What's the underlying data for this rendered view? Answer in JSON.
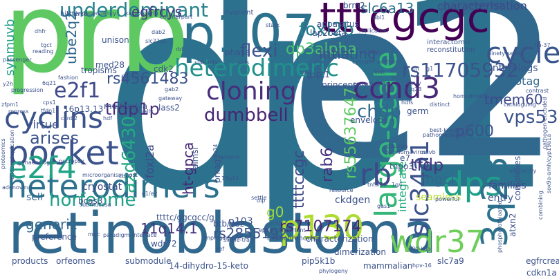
{
  "cloud": {
    "words": [
      {
        "text": "dp1",
        "color": "#2c728e"
      },
      {
        "text": "e2f",
        "color": "#31688e"
      },
      {
        "text": "prb",
        "color": "#5ec962"
      },
      {
        "text": "retinoblastoma",
        "color": "#31688e"
      },
      {
        "text": "p107",
        "color": "#2c728e"
      },
      {
        "text": "tttcgcgc",
        "color": "#440154"
      },
      {
        "text": "heterodimeric",
        "color": "#21918c"
      },
      {
        "text": "heterodimers",
        "color": "#2c728e"
      },
      {
        "text": "pocket",
        "color": "#3b528b"
      },
      {
        "text": "cyclins",
        "color": "#3b528b"
      },
      {
        "text": "cloning",
        "color": "#472d7b"
      },
      {
        "text": "large-scale",
        "color": "#35b779"
      },
      {
        "text": "ccnd3",
        "color": "#482878"
      },
      {
        "text": "p130",
        "color": "#addc30"
      },
      {
        "text": "dps",
        "color": "#1f9e89"
      },
      {
        "text": "3q23",
        "color": "#2c728e"
      },
      {
        "text": "e2f4",
        "color": "#20a486"
      },
      {
        "text": "e2f1",
        "color": "#3e4989"
      },
      {
        "text": "wdr37",
        "color": "#6ece58"
      },
      {
        "text": "slc34a1",
        "color": "#3b528b"
      },
      {
        "text": "underdominant",
        "color": "#26828e"
      },
      {
        "text": "rb",
        "color": "#3e4989"
      },
      {
        "text": "rs7107174",
        "color": "#482878"
      },
      {
        "text": "cycle",
        "color": "#39568c"
      },
      {
        "text": "dp3alpha",
        "color": "#4ac16d"
      },
      {
        "text": "flexi",
        "color": "#3b528b"
      },
      {
        "text": "foxl2b",
        "color": "#26828e"
      },
      {
        "text": "rs11705932",
        "color": "#3b528b"
      },
      {
        "text": "ube2q2",
        "color": "#30678d"
      },
      {
        "text": "tfdp1p",
        "color": "#472c7a"
      },
      {
        "text": "rs4561483",
        "color": "#3b528b"
      },
      {
        "text": "dumbbell",
        "color": "#482475"
      },
      {
        "text": "chdp",
        "color": "#31688e"
      },
      {
        "text": "vps53",
        "color": "#3b528b"
      },
      {
        "text": "azd6430",
        "color": "#25ab82"
      },
      {
        "text": "horfeome",
        "color": "#1fa187"
      },
      {
        "text": "egfrcys",
        "color": "#453781"
      },
      {
        "text": "slc6a13",
        "color": "#2c728e"
      },
      {
        "text": "intiating",
        "color": "#3b528b"
      },
      {
        "text": "characterisation",
        "color": "#3e4989"
      },
      {
        "text": "synmuvb",
        "color": "#1f9e89"
      },
      {
        "text": "arises",
        "color": "#3b528b"
      },
      {
        "text": "rab6",
        "color": "#46327e"
      },
      {
        "text": "ttttccgc",
        "color": "#3e4989"
      },
      {
        "text": "rs55637647",
        "color": "#5ec962"
      },
      {
        "text": "tfdp",
        "color": "#453781"
      },
      {
        "text": "p600",
        "color": "#3b528b"
      },
      {
        "text": "tmem60",
        "color": "#3e4989"
      },
      {
        "text": "halotag",
        "color": "#31688e"
      },
      {
        "text": "interologs",
        "color": "#39568c"
      },
      {
        "text": "ht-gpca",
        "color": "#482475"
      },
      {
        "text": "virtue",
        "color": "#3b528b"
      },
      {
        "text": "integrate",
        "color": "#29af7f"
      },
      {
        "text": "mgcl",
        "color": "#31688e"
      },
      {
        "text": "g0",
        "color": "#a0da39"
      },
      {
        "text": "11q14.1",
        "color": "#46327e"
      },
      {
        "text": "generic",
        "color": "#31688e"
      },
      {
        "text": "rs2855192",
        "color": "#3b528b"
      },
      {
        "text": "foxl2a",
        "color": "#3e4989"
      },
      {
        "text": "p103",
        "color": "#3b528b"
      },
      {
        "text": "ckdgen",
        "color": "#3b528b"
      },
      {
        "text": "seamless",
        "color": "#b5de2b"
      },
      {
        "text": "families",
        "color": "#3e4989"
      },
      {
        "text": "entry",
        "color": "#3b528b"
      },
      {
        "text": "sell",
        "color": "#31688e"
      },
      {
        "text": "cryostat",
        "color": "#3e4989"
      },
      {
        "text": "bcas3",
        "color": "#3e4989"
      },
      {
        "text": "ttttc/ggcgcc/g",
        "color": "#3b528b"
      },
      {
        "text": "e2f2",
        "color": "#3b528b"
      },
      {
        "text": "cdk2",
        "color": "#3b528b"
      },
      {
        "text": "tropisms",
        "color": "#3b528b"
      },
      {
        "text": "med28",
        "color": "#3b528b"
      },
      {
        "text": "unison",
        "color": "#3b528b"
      },
      {
        "text": "phase",
        "color": "#3b528b"
      },
      {
        "text": "gspt1",
        "color": "#3b528b"
      },
      {
        "text": "lap2beta",
        "color": "#3b528b"
      },
      {
        "text": "apparatus",
        "color": "#3b528b"
      },
      {
        "text": "brm2",
        "color": "#3b528b"
      },
      {
        "text": "princeps",
        "color": "#3b528b"
      },
      {
        "text": "envelope",
        "color": "#3b528b"
      },
      {
        "text": "germ",
        "color": "#3b528b"
      },
      {
        "text": "multivulva",
        "color": "#3b528b"
      },
      {
        "text": "lass2",
        "color": "#3b528b"
      },
      {
        "text": "16p13.13",
        "color": "#3b528b"
      },
      {
        "text": "almsl",
        "color": "#3b528b"
      },
      {
        "text": "prkag2",
        "color": "#3b528b"
      },
      {
        "text": "tnpo3",
        "color": "#3b528b"
      },
      {
        "text": "e7",
        "color": "#3b528b"
      },
      {
        "text": "btb/poz",
        "color": "#3b528b"
      },
      {
        "text": "wdr72",
        "color": "#3b528b"
      },
      {
        "text": "preference",
        "color": "#3b528b"
      },
      {
        "text": "products",
        "color": "#3b528b"
      },
      {
        "text": "orfeomes",
        "color": "#3b528b"
      },
      {
        "text": "submodule",
        "color": "#3b528b"
      },
      {
        "text": "14-dihydro-15-keto",
        "color": "#3b528b"
      },
      {
        "text": "pip5k1b",
        "color": "#3b528b"
      },
      {
        "text": "dimerization",
        "color": "#3b528b"
      },
      {
        "text": "mammalian",
        "color": "#3b528b"
      },
      {
        "text": "slc7a9",
        "color": "#3b528b"
      },
      {
        "text": "characterization",
        "color": "#3b528b"
      },
      {
        "text": "complexes",
        "color": "#3b528b"
      },
      {
        "text": "atxn2",
        "color": "#3b528b"
      },
      {
        "text": "egfrcrea",
        "color": "#3b528b"
      },
      {
        "text": "cdkn1a",
        "color": "#3b528b"
      },
      {
        "text": "invariant",
        "color": "#3b528b"
      },
      {
        "text": "hitherto",
        "color": "#3b528b"
      },
      {
        "text": "hiv-dependency",
        "color": "#3b528b"
      },
      {
        "text": "karyopherin",
        "color": "#3b528b"
      },
      {
        "text": "counterpart",
        "color": "#3b528b"
      },
      {
        "text": "reminiscent",
        "color": "#3b528b"
      },
      {
        "text": "abl1",
        "color": "#3b528b"
      },
      {
        "text": "replication",
        "color": "#3b528b"
      },
      {
        "text": "interactomic",
        "color": "#3b528b"
      },
      {
        "text": "reconstitution",
        "color": "#3b528b"
      },
      {
        "text": "ninety-seven",
        "color": "#3b528b"
      },
      {
        "text": "lin-37",
        "color": "#3b528b"
      },
      {
        "text": "crystal",
        "color": "#3b528b"
      },
      {
        "text": "cystatin",
        "color": "#3b528b"
      },
      {
        "text": "partner",
        "color": "#3b528b"
      },
      {
        "text": "exit",
        "color": "#3b528b"
      },
      {
        "text": "ectoplacental",
        "color": "#3b528b"
      },
      {
        "text": "homodimers",
        "color": "#3b528b"
      },
      {
        "text": "hdfs",
        "color": "#3b528b"
      },
      {
        "text": "cataloguing",
        "color": "#3b528b"
      },
      {
        "text": "pathogen-encoded",
        "color": "#3b528b"
      },
      {
        "text": "contrast",
        "color": "#3b528b"
      },
      {
        "text": "best-known",
        "color": "#3b528b"
      },
      {
        "text": "pathomechanisms",
        "color": "#3b528b"
      },
      {
        "text": "gaussia",
        "color": "#3b528b"
      },
      {
        "text": "papillomavirus",
        "color": "#3b528b"
      },
      {
        "text": "powerful",
        "color": "#3b528b"
      },
      {
        "text": "resource",
        "color": "#3b528b"
      },
      {
        "text": "tnfsf10",
        "color": "#3b528b"
      },
      {
        "text": "1g/j",
        "color": "#3b528b"
      },
      {
        "text": "settle",
        "color": "#3b528b"
      },
      {
        "text": "dip",
        "color": "#3b528b"
      },
      {
        "text": "single-trait",
        "color": "#3b528b"
      },
      {
        "text": "impinging",
        "color": "#3b528b"
      },
      {
        "text": "asynchronously",
        "color": "#3b528b"
      },
      {
        "text": "phylogeny",
        "color": "#3b528b"
      },
      {
        "text": "600-kda",
        "color": "#3b528b"
      },
      {
        "text": "combining",
        "color": "#3b528b"
      },
      {
        "text": "sox9a-amh/cyp19a1a",
        "color": "#3b528b"
      },
      {
        "text": "phosphorothioated",
        "color": "#3b528b"
      },
      {
        "text": "necropsy",
        "color": "#3b528b"
      },
      {
        "text": "microorganism-host",
        "color": "#3b528b"
      },
      {
        "text": "gynaecologic",
        "color": "#3b528b"
      },
      {
        "text": "submucosa",
        "color": "#3b528b"
      },
      {
        "text": "paradigm",
        "color": "#3b528b"
      },
      {
        "text": "interface",
        "color": "#3b528b"
      },
      {
        "text": "mgc",
        "color": "#3b528b"
      },
      {
        "text": "proteomics",
        "color": "#3b528b"
      },
      {
        "text": "repress",
        "color": "#3b528b"
      },
      {
        "text": "progression",
        "color": "#3b528b"
      },
      {
        "text": "fashion",
        "color": "#3b528b"
      },
      {
        "text": "reading",
        "color": "#3b528b"
      },
      {
        "text": "tgct",
        "color": "#3b528b"
      },
      {
        "text": "passenger",
        "color": "#3b528b"
      },
      {
        "text": "dhfr",
        "color": "#3b528b"
      },
      {
        "text": "subunits",
        "color": "#3b528b"
      },
      {
        "text": "orfs",
        "color": "#3b528b"
      },
      {
        "text": "rbf",
        "color": "#3b528b"
      },
      {
        "text": "dab2",
        "color": "#3b528b"
      },
      {
        "text": "slc22a2",
        "color": "#3b528b"
      },
      {
        "text": "stark",
        "color": "#3b528b"
      },
      {
        "text": "gab2",
        "color": "#3b528b"
      },
      {
        "text": "gateway",
        "color": "#3b528b"
      },
      {
        "text": "virtually",
        "color": "#3b528b"
      },
      {
        "text": "emry",
        "color": "#3b528b"
      },
      {
        "text": "11q23",
        "color": "#3b528b"
      },
      {
        "text": "distinct",
        "color": "#3b528b"
      },
      {
        "text": "efficiently",
        "color": "#3b528b"
      },
      {
        "text": "tfdp1",
        "color": "#3b528b"
      },
      {
        "text": "ccnb2",
        "color": "#3b528b"
      },
      {
        "text": "hdf",
        "color": "#3b528b"
      },
      {
        "text": "6q21",
        "color": "#3b528b"
      },
      {
        "text": "y2h",
        "color": "#3b528b"
      },
      {
        "text": "muvb",
        "color": "#3b528b"
      },
      {
        "text": "hpv-16",
        "color": "#3b528b"
      },
      {
        "text": "cef",
        "color": "#3b528b"
      },
      {
        "text": "zfpm1",
        "color": "#3b528b"
      },
      {
        "text": "endoreduplication",
        "color": "#3b528b"
      },
      {
        "text": "adenovirus",
        "color": "#3b528b"
      },
      {
        "text": "cdk7",
        "color": "#3b528b"
      },
      {
        "text": "e1/e2",
        "color": "#3b528b"
      },
      {
        "text": "13q14",
        "color": "#3b528b"
      },
      {
        "text": "gas1",
        "color": "#3b528b"
      },
      {
        "text": "arsenic",
        "color": "#3b528b"
      },
      {
        "text": "ttt",
        "color": "#3b528b"
      },
      {
        "text": "g1",
        "color": "#3b528b"
      },
      {
        "text": "cps1",
        "color": "#3b528b"
      },
      {
        "text": "ep300-important",
        "color": "#3b528b"
      },
      {
        "text": "13q34",
        "color": "#3b528b"
      }
    ]
  }
}
